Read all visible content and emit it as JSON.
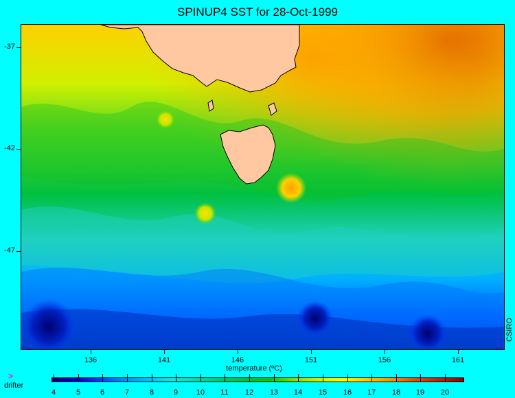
{
  "title": "SPINUP4 SST for 28-Oct-1999",
  "axes": {
    "y_ticks": [
      "-37",
      "-42",
      "-47"
    ],
    "x_ticks": [
      "136",
      "141",
      "146",
      "151",
      "156",
      "161"
    ],
    "x_label": "temperature (ºC)"
  },
  "credit": "CSIRO",
  "legend": {
    "drifter_glyph": ">",
    "drifter_label": "drifter"
  },
  "colorbar": {
    "labels": [
      "4",
      "5",
      "6",
      "7",
      "8",
      "9",
      "10",
      "11",
      "12",
      "13",
      "14",
      "15",
      "16",
      "17",
      "18",
      "19",
      "20"
    ],
    "colors": [
      "#000070",
      "#0000c8",
      "#0040ff",
      "#0090ff",
      "#00c0ff",
      "#20e0e0",
      "#00d8b0",
      "#00c870",
      "#00c040",
      "#10c010",
      "#80e000",
      "#d0f000",
      "#ffff00",
      "#ffc800",
      "#ff9000",
      "#e05000",
      "#c02000",
      "#900000"
    ]
  },
  "map": {
    "land_color": "#ffc8a0"
  }
}
